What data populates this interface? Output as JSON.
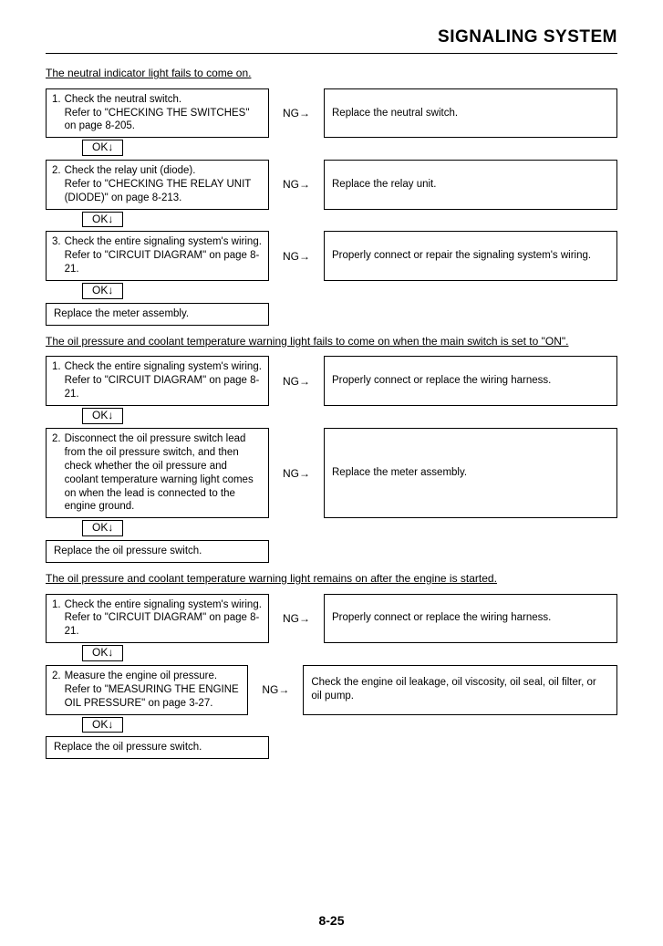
{
  "page_title": "SIGNALING SYSTEM",
  "page_number": "8-25",
  "ng_label": "NG→",
  "ok_label": "OK↓",
  "sections": [
    {
      "heading": "The neutral indicator light fails to come on.",
      "steps": [
        {
          "num": "1.",
          "text": "Check the neutral switch.\nRefer to \"CHECKING THE SWITCHES\" on page 8-205.",
          "action": "Replace the neutral switch."
        },
        {
          "num": "2.",
          "text": "Check the relay unit (diode).\nRefer to \"CHECKING THE RELAY UNIT (DIODE)\" on page 8-213.",
          "action": "Replace the relay unit."
        },
        {
          "num": "3.",
          "text": "Check the entire signaling system's wiring.\nRefer to \"CIRCUIT DIAGRAM\" on page 8-21.",
          "action": "Properly connect or repair the signaling system's wiring."
        }
      ],
      "final": "Replace the meter assembly."
    },
    {
      "heading": "The oil pressure and coolant temperature warning light fails to come on when the main switch is set to \"ON\".",
      "steps": [
        {
          "num": "1.",
          "text": "Check the entire signaling system's wiring.\nRefer to \"CIRCUIT DIAGRAM\" on page 8-21.",
          "action": "Properly connect or replace the wiring harness."
        },
        {
          "num": "2.",
          "text": "Disconnect the oil pressure switch lead from the oil pressure switch, and then check whether the oil pressure and coolant temperature warning light comes on when the lead is connected to the engine ground.",
          "action": "Replace the meter assembly."
        }
      ],
      "final": "Replace the oil pressure switch."
    },
    {
      "heading": "The oil pressure and coolant temperature warning light remains on after the engine is started.",
      "steps": [
        {
          "num": "1.",
          "text": "Check the entire signaling system's wiring.\nRefer to \"CIRCUIT DIAGRAM\" on page 8-21.",
          "action": "Properly connect or replace the wiring harness."
        },
        {
          "num": "2.",
          "text": "Measure the engine oil pressure.\nRefer to \"MEASURING THE ENGINE OIL PRESSURE\" on page 3-27.",
          "action": "Check the engine oil leakage, oil viscosity, oil seal, oil filter, or oil pump."
        }
      ],
      "final": "Replace the oil pressure switch."
    }
  ]
}
